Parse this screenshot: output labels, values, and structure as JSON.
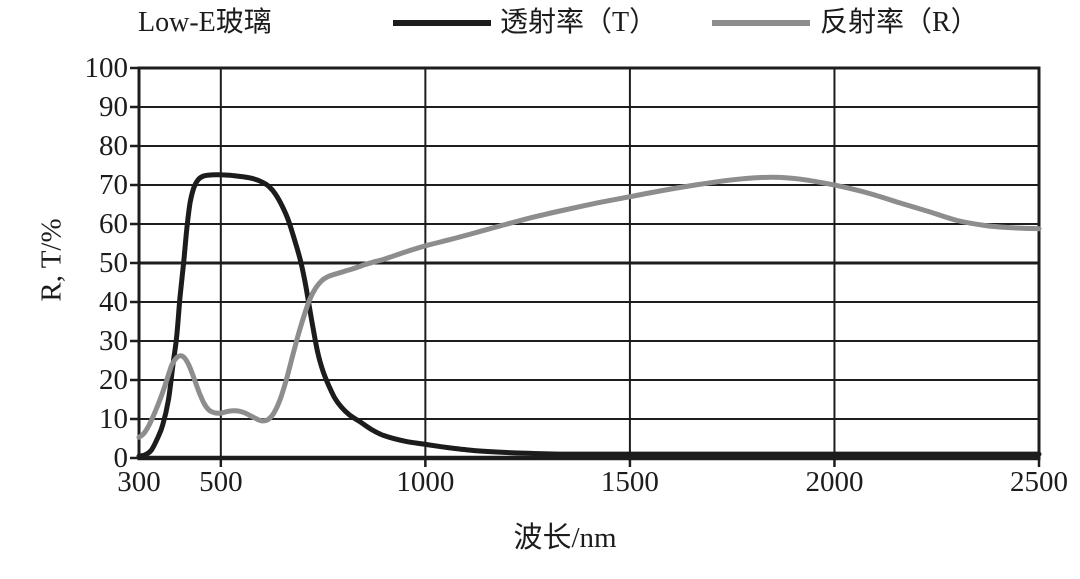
{
  "legend": {
    "position": "top"
  },
  "chart_data": {
    "type": "line",
    "title": "Low-E玻璃",
    "xlabel": "波长/nm",
    "ylabel": "R, T/%",
    "xlim": [
      300,
      2500
    ],
    "ylim": [
      0,
      100
    ],
    "x_ticks": [
      300,
      500,
      1000,
      1500,
      2000,
      2500
    ],
    "y_ticks": [
      0,
      10,
      20,
      30,
      40,
      50,
      60,
      70,
      80,
      90,
      100
    ],
    "grid": true,
    "grid_color": "#1d1d1d",
    "legend_position": "top",
    "series": [
      {
        "name": "透射率（T）",
        "color": "#1c1c1c",
        "points": [
          [
            300,
            0.5
          ],
          [
            315,
            0.8
          ],
          [
            330,
            2
          ],
          [
            345,
            5
          ],
          [
            358,
            8.5
          ],
          [
            372,
            15
          ],
          [
            383,
            24
          ],
          [
            392,
            31
          ],
          [
            400,
            41
          ],
          [
            409,
            50
          ],
          [
            417,
            59
          ],
          [
            425,
            65.5
          ],
          [
            434,
            69.3
          ],
          [
            445,
            71.4
          ],
          [
            458,
            72.3
          ],
          [
            478,
            72.6
          ],
          [
            505,
            72.6
          ],
          [
            530,
            72.4
          ],
          [
            555,
            72.1
          ],
          [
            580,
            71.6
          ],
          [
            602,
            70.7
          ],
          [
            618,
            69.6
          ],
          [
            634,
            67.6
          ],
          [
            650,
            64.6
          ],
          [
            665,
            61
          ],
          [
            680,
            56
          ],
          [
            695,
            50.5
          ],
          [
            707,
            44.5
          ],
          [
            716,
            39
          ],
          [
            726,
            33
          ],
          [
            737,
            27
          ],
          [
            749,
            22.5
          ],
          [
            762,
            19
          ],
          [
            778,
            15.5
          ],
          [
            795,
            13
          ],
          [
            815,
            11
          ],
          [
            840,
            9.3
          ],
          [
            870,
            7.2
          ],
          [
            900,
            5.7
          ],
          [
            950,
            4.3
          ],
          [
            1000,
            3.5
          ],
          [
            1060,
            2.6
          ],
          [
            1120,
            1.9
          ],
          [
            1180,
            1.5
          ],
          [
            1250,
            1.2
          ],
          [
            1350,
            1
          ],
          [
            1500,
            1
          ],
          [
            1700,
            1
          ],
          [
            1900,
            1
          ],
          [
            2100,
            1
          ],
          [
            2300,
            1
          ],
          [
            2500,
            1
          ]
        ]
      },
      {
        "name": "反射率（R）",
        "color": "#8d8d8d",
        "points": [
          [
            300,
            5.3
          ],
          [
            312,
            6.3
          ],
          [
            325,
            8.5
          ],
          [
            340,
            12
          ],
          [
            355,
            16
          ],
          [
            368,
            20
          ],
          [
            380,
            23.8
          ],
          [
            390,
            25.5
          ],
          [
            400,
            26.2
          ],
          [
            410,
            25.8
          ],
          [
            422,
            23.8
          ],
          [
            435,
            20.3
          ],
          [
            448,
            16.6
          ],
          [
            460,
            13.8
          ],
          [
            472,
            12.2
          ],
          [
            485,
            11.6
          ],
          [
            500,
            11.5
          ],
          [
            515,
            11.9
          ],
          [
            530,
            12.1
          ],
          [
            545,
            12
          ],
          [
            560,
            11.5
          ],
          [
            575,
            10.7
          ],
          [
            590,
            9.9
          ],
          [
            603,
            9.5
          ],
          [
            616,
            9.9
          ],
          [
            630,
            11.6
          ],
          [
            645,
            15
          ],
          [
            660,
            20
          ],
          [
            675,
            26
          ],
          [
            690,
            31.8
          ],
          [
            705,
            37
          ],
          [
            718,
            40.8
          ],
          [
            732,
            43.6
          ],
          [
            746,
            45.4
          ],
          [
            760,
            46.4
          ],
          [
            778,
            47.1
          ],
          [
            800,
            47.8
          ],
          [
            825,
            48.6
          ],
          [
            850,
            49.5
          ],
          [
            875,
            50.3
          ],
          [
            900,
            51
          ],
          [
            950,
            52.8
          ],
          [
            1000,
            54.4
          ],
          [
            1060,
            56
          ],
          [
            1120,
            57.7
          ],
          [
            1200,
            60
          ],
          [
            1270,
            61.9
          ],
          [
            1340,
            63.6
          ],
          [
            1420,
            65.4
          ],
          [
            1500,
            67
          ],
          [
            1580,
            68.6
          ],
          [
            1660,
            70
          ],
          [
            1740,
            71.2
          ],
          [
            1800,
            71.8
          ],
          [
            1850,
            72
          ],
          [
            1910,
            71.6
          ],
          [
            1970,
            70.6
          ],
          [
            2030,
            69.3
          ],
          [
            2090,
            67.7
          ],
          [
            2160,
            65.4
          ],
          [
            2230,
            63.2
          ],
          [
            2300,
            60.9
          ],
          [
            2370,
            59.6
          ],
          [
            2440,
            59
          ],
          [
            2500,
            58.8
          ]
        ]
      }
    ]
  }
}
